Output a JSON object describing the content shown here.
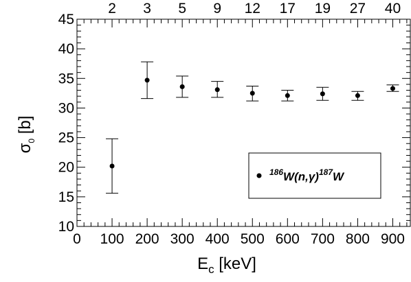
{
  "chart_data": {
    "type": "scatter",
    "xlabel": {
      "main": "E",
      "sub": "c",
      "rest": " [keV]"
    },
    "ylabel": {
      "main": "σ",
      "sub": "0",
      "rest": " [b]"
    },
    "xlim": [
      0,
      950
    ],
    "ylim": [
      10,
      45
    ],
    "x_ticks": [
      0,
      100,
      200,
      300,
      400,
      500,
      600,
      700,
      800,
      900
    ],
    "x_tick_labels": [
      "0",
      "100",
      "200",
      "300",
      "400",
      "500",
      "600",
      "700",
      "800",
      "900"
    ],
    "y_ticks": [
      10,
      15,
      20,
      25,
      30,
      35,
      40,
      45
    ],
    "y_tick_labels": [
      "10",
      "15",
      "20",
      "25",
      "30",
      "35",
      "40",
      "45"
    ],
    "top_labels": [
      "2",
      "3",
      "5",
      "9",
      "12",
      "17",
      "19",
      "27",
      "40"
    ],
    "grid": false,
    "legend": {
      "position": "lower-right",
      "prefix_sup": "186",
      "core": "W(n,γ)",
      "suffix_sup": "187",
      "suffix": "W"
    },
    "series": [
      {
        "marker_color": "#000000",
        "points": [
          {
            "x": 100,
            "y": 20.2,
            "err_low": 15.6,
            "err_high": 24.8
          },
          {
            "x": 200,
            "y": 34.7,
            "err_low": 31.6,
            "err_high": 37.8
          },
          {
            "x": 300,
            "y": 33.6,
            "err_low": 31.8,
            "err_high": 35.4
          },
          {
            "x": 400,
            "y": 33.1,
            "err_low": 31.8,
            "err_high": 34.5
          },
          {
            "x": 500,
            "y": 32.5,
            "err_low": 31.2,
            "err_high": 33.7
          },
          {
            "x": 600,
            "y": 32.1,
            "err_low": 31.2,
            "err_high": 33.0
          },
          {
            "x": 700,
            "y": 32.4,
            "err_low": 31.3,
            "err_high": 33.5
          },
          {
            "x": 800,
            "y": 32.1,
            "err_low": 31.3,
            "err_high": 32.8
          },
          {
            "x": 900,
            "y": 33.3,
            "err_low": 32.8,
            "err_high": 33.9
          }
        ]
      }
    ]
  }
}
